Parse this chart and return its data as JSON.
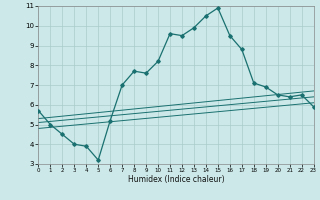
{
  "xlabel": "Humidex (Indice chaleur)",
  "bg_color": "#cce8e8",
  "grid_color": "#aacccc",
  "line_color": "#1a7070",
  "xmin": 0,
  "xmax": 23,
  "ymin": 3,
  "ymax": 11,
  "yticks": [
    3,
    4,
    5,
    6,
    7,
    8,
    9,
    10,
    11
  ],
  "xticks": [
    0,
    1,
    2,
    3,
    4,
    5,
    6,
    7,
    8,
    9,
    10,
    11,
    12,
    13,
    14,
    15,
    16,
    17,
    18,
    19,
    20,
    21,
    22,
    23
  ],
  "line1_x": [
    0,
    1,
    2,
    3,
    4,
    5,
    6,
    7,
    8,
    9,
    10,
    11,
    12,
    13,
    14,
    15,
    16,
    17,
    18,
    19,
    20,
    21,
    22,
    23
  ],
  "line1_y": [
    5.7,
    5.0,
    4.5,
    4.0,
    3.9,
    3.2,
    5.2,
    7.0,
    7.7,
    7.6,
    8.2,
    9.6,
    9.5,
    9.9,
    10.5,
    10.9,
    9.5,
    8.8,
    7.1,
    6.9,
    6.5,
    6.4,
    6.5,
    5.9
  ],
  "line2_x": [
    0,
    23
  ],
  "line2_y": [
    4.8,
    6.1
  ],
  "line3_x": [
    0,
    23
  ],
  "line3_y": [
    5.1,
    6.4
  ],
  "line4_x": [
    0,
    23
  ],
  "line4_y": [
    5.3,
    6.7
  ]
}
